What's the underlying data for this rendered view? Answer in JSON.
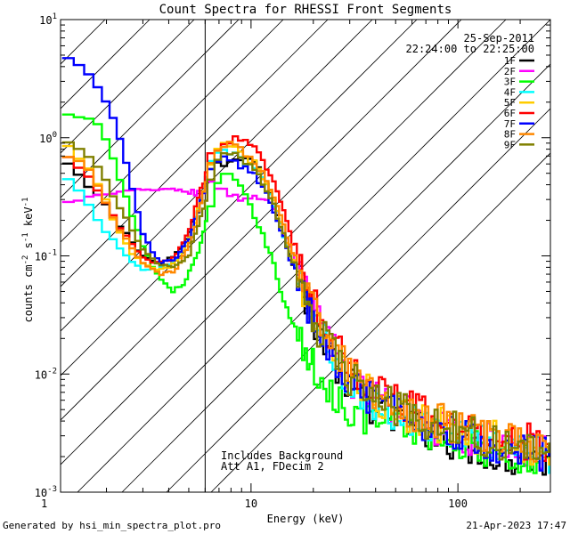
{
  "footer": {
    "left": "Generated by hsi_min_spectra_plot.pro",
    "right": "21-Apr-2023 17:47"
  },
  "chart_data": {
    "type": "line",
    "title": "Count Spectra for RHESSI Front Segments",
    "xlabel": "Energy (keV)",
    "ylabel": "counts cm^-2 s^-1 keV^-1",
    "ylabel_parts": {
      "a": "counts cm",
      "b": "-2",
      "c": " s",
      "d": "-1",
      "e": " keV",
      "f": "-1"
    },
    "x_scale": "log",
    "y_scale": "log",
    "xlim": [
      1.2,
      280
    ],
    "ylim": [
      0.001,
      10
    ],
    "x_ticks": [
      {
        "value": 1,
        "label": "1"
      },
      {
        "value": 10,
        "label": "10"
      },
      {
        "value": 100,
        "label": "100"
      }
    ],
    "y_ticks": [
      {
        "value": 0.001,
        "base": "10",
        "exp": "-3"
      },
      {
        "value": 0.01,
        "base": "10",
        "exp": "-2"
      },
      {
        "value": 0.1,
        "base": "10",
        "exp": "-1"
      },
      {
        "value": 1,
        "base": "10",
        "exp": "0"
      },
      {
        "value": 10,
        "base": "10",
        "exp": "1"
      }
    ],
    "date": "25-Sep-2011",
    "time_range": "22:24:00 to 22:25:00",
    "annotation_lines": [
      "Includes Background",
      "Att A1, FDecim 2"
    ],
    "threshold_energy": 6,
    "series": [
      {
        "name": "1F",
        "color": "#000000",
        "points": [
          [
            1.28,
            0.62
          ],
          [
            1.6,
            0.4
          ],
          [
            1.9,
            0.3
          ],
          [
            2.2,
            0.2
          ],
          [
            2.6,
            0.14
          ],
          [
            3.0,
            0.1
          ],
          [
            3.6,
            0.085
          ],
          [
            4.3,
            0.1
          ],
          [
            5.0,
            0.15
          ],
          [
            5.7,
            0.28
          ],
          [
            6.4,
            0.55
          ],
          [
            7.2,
            0.6
          ],
          [
            8.2,
            0.62
          ],
          [
            9.3,
            0.68
          ],
          [
            10.2,
            0.7
          ],
          [
            11.0,
            0.55
          ],
          [
            12.5,
            0.32
          ],
          [
            14.0,
            0.18
          ],
          [
            16.0,
            0.085
          ],
          [
            19.0,
            0.038
          ],
          [
            23.0,
            0.018
          ],
          [
            28.0,
            0.009
          ],
          [
            34.0,
            0.007
          ],
          [
            42.0,
            0.0045
          ],
          [
            55.0,
            0.0038
          ],
          [
            75.0,
            0.0032
          ],
          [
            100.0,
            0.0026
          ],
          [
            140.0,
            0.0022
          ],
          [
            200.0,
            0.0019
          ],
          [
            270.0,
            0.0018
          ]
        ]
      },
      {
        "name": "2F",
        "color": "#ff00ff",
        "points": [
          [
            1.28,
            0.28
          ],
          [
            1.6,
            0.31
          ],
          [
            2.0,
            0.33
          ],
          [
            2.5,
            0.35
          ],
          [
            3.0,
            0.36
          ],
          [
            3.6,
            0.37
          ],
          [
            4.3,
            0.36
          ],
          [
            5.0,
            0.35
          ],
          [
            5.7,
            0.34
          ],
          [
            6.4,
            0.4
          ],
          [
            7.2,
            0.38
          ],
          [
            8.2,
            0.32
          ],
          [
            9.3,
            0.3
          ],
          [
            10.5,
            0.32
          ],
          [
            12.0,
            0.3
          ],
          [
            13.5,
            0.22
          ],
          [
            15.0,
            0.13
          ],
          [
            17.0,
            0.07
          ],
          [
            20.0,
            0.036
          ],
          [
            24.0,
            0.018
          ],
          [
            29.0,
            0.01
          ],
          [
            35.0,
            0.0075
          ],
          [
            45.0,
            0.0055
          ],
          [
            60.0,
            0.0045
          ],
          [
            80.0,
            0.0035
          ],
          [
            110.0,
            0.003
          ],
          [
            150.0,
            0.0026
          ],
          [
            210.0,
            0.0023
          ],
          [
            270.0,
            0.0021
          ]
        ]
      },
      {
        "name": "3F",
        "color": "#00ff00",
        "points": [
          [
            1.28,
            1.55
          ],
          [
            1.6,
            1.45
          ],
          [
            1.9,
            1.2
          ],
          [
            2.2,
            0.6
          ],
          [
            2.6,
            0.25
          ],
          [
            3.0,
            0.12
          ],
          [
            3.6,
            0.065
          ],
          [
            4.2,
            0.05
          ],
          [
            4.8,
            0.06
          ],
          [
            5.5,
            0.1
          ],
          [
            6.2,
            0.22
          ],
          [
            6.9,
            0.42
          ],
          [
            7.8,
            0.5
          ],
          [
            8.8,
            0.38
          ],
          [
            9.8,
            0.28
          ],
          [
            11.0,
            0.18
          ],
          [
            12.5,
            0.1
          ],
          [
            14.0,
            0.05
          ],
          [
            16.0,
            0.025
          ],
          [
            19.0,
            0.013
          ],
          [
            23.0,
            0.008
          ],
          [
            28.0,
            0.0055
          ],
          [
            35.0,
            0.0045
          ],
          [
            45.0,
            0.0038
          ],
          [
            60.0,
            0.0035
          ],
          [
            80.0,
            0.003
          ],
          [
            110.0,
            0.0026
          ],
          [
            150.0,
            0.0022
          ],
          [
            210.0,
            0.002
          ],
          [
            270.0,
            0.0018
          ]
        ]
      },
      {
        "name": "4F",
        "color": "#00ffff",
        "points": [
          [
            1.28,
            0.45
          ],
          [
            1.6,
            0.3
          ],
          [
            1.9,
            0.18
          ],
          [
            2.2,
            0.13
          ],
          [
            2.6,
            0.09
          ],
          [
            3.0,
            0.075
          ],
          [
            3.6,
            0.078
          ],
          [
            4.3,
            0.09
          ],
          [
            5.0,
            0.14
          ],
          [
            5.7,
            0.3
          ],
          [
            6.4,
            0.6
          ],
          [
            7.2,
            0.82
          ],
          [
            8.2,
            0.74
          ],
          [
            9.3,
            0.62
          ],
          [
            10.5,
            0.55
          ],
          [
            12.0,
            0.38
          ],
          [
            13.5,
            0.22
          ],
          [
            15.0,
            0.12
          ],
          [
            17.0,
            0.06
          ],
          [
            20.0,
            0.03
          ],
          [
            24.0,
            0.015
          ],
          [
            29.0,
            0.009
          ],
          [
            35.0,
            0.007
          ],
          [
            45.0,
            0.005
          ],
          [
            60.0,
            0.004
          ],
          [
            80.0,
            0.0035
          ],
          [
            110.0,
            0.003
          ],
          [
            150.0,
            0.0026
          ],
          [
            210.0,
            0.0023
          ],
          [
            270.0,
            0.0021
          ]
        ]
      },
      {
        "name": "5F",
        "color": "#ffcc00",
        "points": [
          [
            1.28,
            0.85
          ],
          [
            1.6,
            0.6
          ],
          [
            1.9,
            0.36
          ],
          [
            2.2,
            0.18
          ],
          [
            2.6,
            0.11
          ],
          [
            3.0,
            0.085
          ],
          [
            3.6,
            0.075
          ],
          [
            4.3,
            0.085
          ],
          [
            5.0,
            0.13
          ],
          [
            5.7,
            0.28
          ],
          [
            6.4,
            0.6
          ],
          [
            7.2,
            0.88
          ],
          [
            8.2,
            0.82
          ],
          [
            9.3,
            0.72
          ],
          [
            10.5,
            0.6
          ],
          [
            12.0,
            0.4
          ],
          [
            13.5,
            0.24
          ],
          [
            15.0,
            0.13
          ],
          [
            17.0,
            0.065
          ],
          [
            20.0,
            0.032
          ],
          [
            24.0,
            0.016
          ],
          [
            29.0,
            0.01
          ],
          [
            35.0,
            0.0075
          ],
          [
            45.0,
            0.0055
          ],
          [
            60.0,
            0.0045
          ],
          [
            80.0,
            0.0038
          ],
          [
            110.0,
            0.0032
          ],
          [
            150.0,
            0.0028
          ],
          [
            210.0,
            0.0025
          ],
          [
            270.0,
            0.0022
          ]
        ]
      },
      {
        "name": "6F",
        "color": "#ff0000",
        "points": [
          [
            1.28,
            0.68
          ],
          [
            1.6,
            0.5
          ],
          [
            1.9,
            0.32
          ],
          [
            2.2,
            0.2
          ],
          [
            2.6,
            0.13
          ],
          [
            3.0,
            0.095
          ],
          [
            3.6,
            0.085
          ],
          [
            4.3,
            0.1
          ],
          [
            5.0,
            0.16
          ],
          [
            5.7,
            0.36
          ],
          [
            6.4,
            0.7
          ],
          [
            7.2,
            0.9
          ],
          [
            8.2,
            0.98
          ],
          [
            9.3,
            0.95
          ],
          [
            10.5,
            0.86
          ],
          [
            12.0,
            0.55
          ],
          [
            13.5,
            0.33
          ],
          [
            15.0,
            0.18
          ],
          [
            17.0,
            0.09
          ],
          [
            20.0,
            0.045
          ],
          [
            24.0,
            0.022
          ],
          [
            29.0,
            0.013
          ],
          [
            35.0,
            0.009
          ],
          [
            45.0,
            0.0065
          ],
          [
            60.0,
            0.005
          ],
          [
            80.0,
            0.0042
          ],
          [
            110.0,
            0.0035
          ],
          [
            150.0,
            0.003
          ],
          [
            210.0,
            0.0027
          ],
          [
            270.0,
            0.0024
          ]
        ]
      },
      {
        "name": "7F",
        "color": "#0000ff",
        "points": [
          [
            1.28,
            5.0
          ],
          [
            1.6,
            3.6
          ],
          [
            1.9,
            2.4
          ],
          [
            2.2,
            1.4
          ],
          [
            2.6,
            0.45
          ],
          [
            3.0,
            0.15
          ],
          [
            3.6,
            0.09
          ],
          [
            4.3,
            0.09
          ],
          [
            5.0,
            0.14
          ],
          [
            5.7,
            0.28
          ],
          [
            6.4,
            0.55
          ],
          [
            7.2,
            0.7
          ],
          [
            8.2,
            0.62
          ],
          [
            9.3,
            0.55
          ],
          [
            10.5,
            0.48
          ],
          [
            12.0,
            0.32
          ],
          [
            13.5,
            0.2
          ],
          [
            15.0,
            0.11
          ],
          [
            17.0,
            0.055
          ],
          [
            20.0,
            0.028
          ],
          [
            24.0,
            0.014
          ],
          [
            29.0,
            0.009
          ],
          [
            35.0,
            0.0065
          ],
          [
            45.0,
            0.005
          ],
          [
            60.0,
            0.0042
          ],
          [
            80.0,
            0.0035
          ],
          [
            110.0,
            0.003
          ],
          [
            150.0,
            0.0026
          ],
          [
            210.0,
            0.0023
          ],
          [
            270.0,
            0.0021
          ]
        ]
      },
      {
        "name": "8F",
        "color": "#ff8800",
        "points": [
          [
            1.28,
            0.72
          ],
          [
            1.6,
            0.56
          ],
          [
            1.9,
            0.34
          ],
          [
            2.2,
            0.2
          ],
          [
            2.6,
            0.12
          ],
          [
            3.0,
            0.085
          ],
          [
            3.6,
            0.07
          ],
          [
            4.3,
            0.075
          ],
          [
            5.0,
            0.12
          ],
          [
            5.7,
            0.26
          ],
          [
            6.4,
            0.58
          ],
          [
            7.2,
            0.9
          ],
          [
            8.2,
            0.85
          ],
          [
            9.3,
            0.74
          ],
          [
            10.5,
            0.62
          ],
          [
            12.0,
            0.42
          ],
          [
            13.5,
            0.25
          ],
          [
            15.0,
            0.14
          ],
          [
            17.0,
            0.07
          ],
          [
            20.0,
            0.035
          ],
          [
            24.0,
            0.018
          ],
          [
            29.0,
            0.011
          ],
          [
            35.0,
            0.008
          ],
          [
            45.0,
            0.006
          ],
          [
            60.0,
            0.0048
          ],
          [
            80.0,
            0.004
          ],
          [
            110.0,
            0.0034
          ],
          [
            150.0,
            0.003
          ],
          [
            210.0,
            0.0026
          ],
          [
            270.0,
            0.0023
          ]
        ]
      },
      {
        "name": "9F",
        "color": "#808000",
        "points": [
          [
            1.28,
            0.95
          ],
          [
            1.6,
            0.75
          ],
          [
            1.9,
            0.5
          ],
          [
            2.2,
            0.3
          ],
          [
            2.6,
            0.18
          ],
          [
            3.0,
            0.11
          ],
          [
            3.6,
            0.085
          ],
          [
            4.3,
            0.08
          ],
          [
            5.0,
            0.1
          ],
          [
            5.7,
            0.2
          ],
          [
            6.4,
            0.45
          ],
          [
            7.2,
            0.75
          ],
          [
            8.2,
            0.72
          ],
          [
            9.3,
            0.62
          ],
          [
            10.5,
            0.52
          ],
          [
            12.0,
            0.36
          ],
          [
            13.5,
            0.21
          ],
          [
            15.0,
            0.12
          ],
          [
            17.0,
            0.06
          ],
          [
            20.0,
            0.03
          ],
          [
            24.0,
            0.016
          ],
          [
            29.0,
            0.01
          ],
          [
            35.0,
            0.0075
          ],
          [
            45.0,
            0.0056
          ],
          [
            60.0,
            0.0045
          ],
          [
            80.0,
            0.0037
          ],
          [
            110.0,
            0.0031
          ],
          [
            150.0,
            0.0027
          ],
          [
            210.0,
            0.0024
          ],
          [
            270.0,
            0.0021
          ]
        ]
      }
    ]
  }
}
